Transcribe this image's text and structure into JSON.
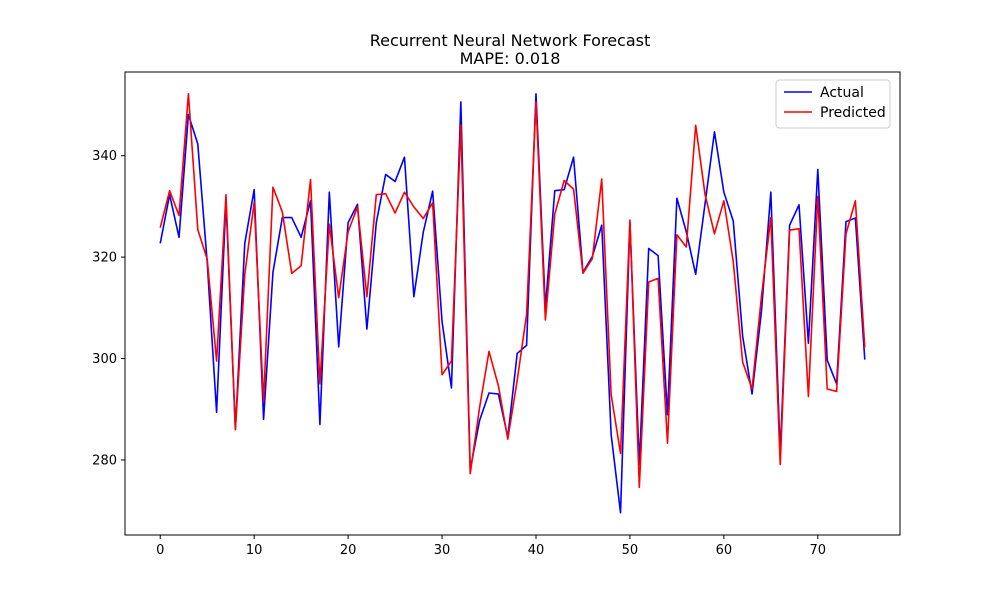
{
  "chart_data": {
    "type": "line",
    "title": "Recurrent Neural Network Forecast",
    "subtitle": "MAPE: 0.018",
    "xlabel": "",
    "ylabel": "",
    "xlim": [
      -3.75,
      78.75
    ],
    "ylim": [
      265.2,
      356.5
    ],
    "x_ticks": [
      0,
      10,
      20,
      30,
      40,
      50,
      60,
      70
    ],
    "y_ticks": [
      280,
      300,
      320,
      340
    ],
    "grid": false,
    "legend_position": "top-right",
    "series": [
      {
        "name": "Actual",
        "color": "#0000ff",
        "values": [
          322.7,
          332.3,
          323.9,
          348.1,
          342.3,
          319.0,
          289.4,
          331.1,
          286.0,
          322.7,
          333.3,
          288.0,
          317.0,
          327.8,
          327.8,
          323.9,
          331.1,
          287.0,
          332.8,
          302.3,
          326.8,
          330.4,
          305.8,
          326.8,
          336.3,
          334.9,
          339.7,
          312.2,
          324.9,
          333.0,
          307.3,
          294.2,
          350.6,
          278.1,
          287.8,
          293.2,
          293.0,
          284.5,
          301.0,
          302.6,
          352.2,
          310.0,
          333.1,
          333.3,
          339.7,
          317.0,
          320.1,
          326.3,
          285.0,
          269.6,
          326.8,
          279.1,
          321.7,
          320.3,
          288.9,
          331.6,
          325.0,
          316.6,
          330.6,
          344.7,
          332.8,
          327.1,
          304.4,
          293.0,
          309.3,
          332.8,
          281.3,
          326.3,
          330.3,
          303.0,
          337.3,
          299.7,
          295.0,
          327.0,
          327.7,
          299.8
        ]
      },
      {
        "name": "Predicted",
        "color": "#ff0000",
        "values": [
          325.8,
          333.1,
          328.2,
          352.2,
          325.4,
          319.6,
          299.5,
          332.3,
          286.0,
          316.6,
          330.8,
          291.5,
          333.8,
          328.9,
          316.8,
          318.3,
          335.3,
          295.0,
          326.5,
          312.0,
          325.0,
          329.9,
          312.2,
          332.3,
          332.5,
          328.7,
          332.8,
          329.9,
          327.6,
          330.7,
          296.8,
          299.5,
          346.0,
          277.3,
          290.4,
          301.4,
          294.6,
          284.1,
          295.7,
          308.7,
          350.6,
          307.6,
          328.5,
          335.1,
          333.4,
          316.8,
          319.7,
          335.4,
          292.9,
          281.3,
          327.3,
          274.6,
          315.1,
          315.8,
          283.3,
          324.4,
          322.0,
          346.0,
          332.3,
          324.6,
          331.1,
          319.1,
          299.3,
          294.0,
          312.2,
          327.8,
          279.1,
          325.3,
          325.6,
          292.5,
          332.0,
          294.0,
          293.5,
          324.6,
          331.1,
          302.2
        ]
      }
    ]
  }
}
